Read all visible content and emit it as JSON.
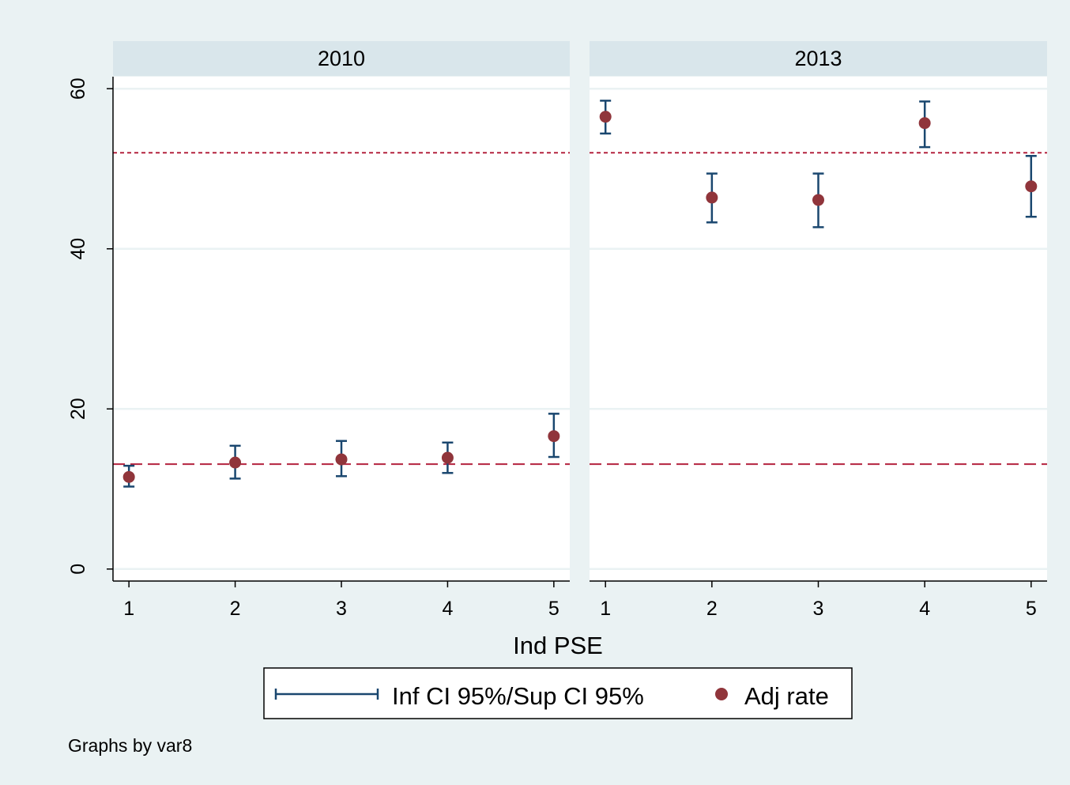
{
  "chart_data": {
    "type": "scatter",
    "panels": [
      {
        "title": "2010",
        "x": [
          1,
          2,
          3,
          4,
          5
        ],
        "adj_rate": [
          11.5,
          13.3,
          13.7,
          13.9,
          16.6
        ],
        "ci_lower": [
          10.3,
          11.3,
          11.6,
          12.0,
          14.0
        ],
        "ci_upper": [
          12.9,
          15.4,
          16.0,
          15.8,
          19.4
        ]
      },
      {
        "title": "2013",
        "x": [
          1,
          2,
          3,
          4,
          5
        ],
        "adj_rate": [
          56.5,
          46.4,
          46.1,
          55.7,
          47.8
        ],
        "ci_lower": [
          54.4,
          43.3,
          42.7,
          52.7,
          44.0
        ],
        "ci_upper": [
          58.5,
          49.4,
          49.4,
          58.4,
          51.6
        ]
      }
    ],
    "reference_lines": [
      {
        "y": 52.0,
        "style": "short-dash"
      },
      {
        "y": 13.1,
        "style": "long-dash"
      }
    ],
    "ylim": [
      -1.5,
      61.5
    ],
    "yticks": [
      0,
      20,
      40,
      60
    ],
    "xticks": [
      1,
      2,
      3,
      4,
      5
    ],
    "xlim": [
      0.85,
      5.15
    ],
    "xlabel": "Ind PSE",
    "ylabel": "",
    "legend": {
      "position": "bottom",
      "entries": [
        "Inf CI 95%/Sup CI 95%",
        "Adj rate"
      ]
    },
    "note": "Graphs by var8",
    "grid": true,
    "colors": {
      "background": "#eaf2f3",
      "strip": "#d9e6eb",
      "ci": "#1a476f",
      "marker": "#90353b",
      "refline": "#b4233f",
      "grid": "#eaf2f3"
    }
  }
}
